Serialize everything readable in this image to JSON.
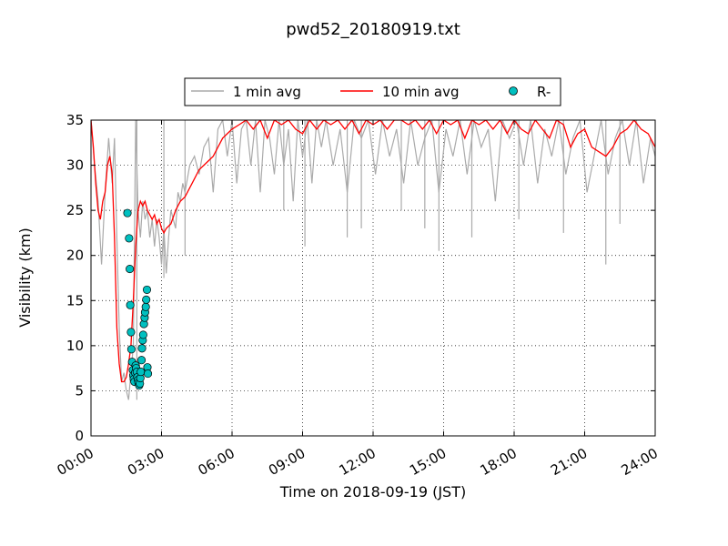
{
  "chart_data": {
    "type": "line",
    "title": "pwd52_20180919.txt",
    "xlabel": "Time on 2018-09-19 (JST)",
    "ylabel": "Visibility (km)",
    "xlim": [
      0,
      24
    ],
    "ylim": [
      0,
      35
    ],
    "x_ticks": [
      0,
      3,
      6,
      9,
      12,
      15,
      18,
      21,
      24
    ],
    "x_tick_labels": [
      "00:00",
      "03:00",
      "06:00",
      "09:00",
      "12:00",
      "15:00",
      "18:00",
      "21:00",
      "24:00"
    ],
    "y_ticks": [
      0,
      5,
      10,
      15,
      20,
      25,
      30,
      35
    ],
    "y_tick_labels": [
      "0",
      "5",
      "10",
      "15",
      "20",
      "25",
      "30",
      "35"
    ],
    "grid": true,
    "legend_position": "top-center",
    "series": [
      {
        "name": "1 min avg",
        "kind": "line",
        "color": "#aaaaaa",
        "x": [
          0.0,
          0.15,
          0.3,
          0.45,
          0.6,
          0.75,
          0.9,
          1.0,
          1.1,
          1.2,
          1.3,
          1.4,
          1.5,
          1.6,
          1.7,
          1.8,
          1.9,
          2.0,
          2.1,
          2.2,
          2.3,
          2.4,
          2.5,
          2.6,
          2.7,
          2.8,
          2.9,
          3.0,
          3.1,
          3.2,
          3.3,
          3.4,
          3.5,
          3.6,
          3.7,
          3.8,
          3.9,
          4.0,
          4.2,
          4.4,
          4.6,
          4.8,
          5.0,
          5.2,
          5.4,
          5.6,
          5.8,
          6.0,
          6.2,
          6.4,
          6.6,
          6.8,
          7.0,
          7.2,
          7.4,
          7.6,
          7.8,
          8.0,
          8.2,
          8.4,
          8.6,
          8.8,
          9.0,
          9.2,
          9.4,
          9.6,
          9.8,
          10.0,
          10.3,
          10.6,
          10.9,
          11.2,
          11.5,
          11.8,
          12.1,
          12.4,
          12.7,
          13.0,
          13.3,
          13.6,
          13.9,
          14.2,
          14.5,
          14.8,
          15.1,
          15.4,
          15.7,
          16.0,
          16.3,
          16.6,
          16.9,
          17.2,
          17.5,
          17.8,
          18.1,
          18.4,
          18.7,
          19.0,
          19.3,
          19.6,
          19.9,
          20.2,
          20.5,
          20.8,
          21.1,
          21.4,
          21.7,
          22.0,
          22.3,
          22.6,
          22.9,
          23.2,
          23.5,
          23.8,
          24.0
        ],
        "y": [
          35,
          30,
          26,
          19,
          27,
          33,
          28,
          33,
          22,
          12,
          6,
          7,
          5,
          4,
          7,
          10,
          35,
          25,
          22,
          26,
          24,
          25,
          22,
          24,
          21,
          24,
          22,
          19,
          23,
          18,
          22,
          25,
          24,
          23,
          27,
          26,
          28,
          27,
          30,
          31,
          29,
          32,
          33,
          27,
          34,
          35,
          31,
          35,
          28,
          34,
          35,
          30,
          35,
          27,
          35,
          33,
          29,
          35,
          30,
          34,
          26,
          35,
          31,
          35,
          28,
          35,
          32,
          35,
          30,
          34,
          27,
          35,
          33,
          35,
          29,
          35,
          31,
          34,
          28,
          35,
          30,
          33,
          35,
          27,
          34,
          31,
          35,
          29,
          35,
          32,
          34,
          26,
          35,
          33,
          35,
          30,
          35,
          28,
          34,
          31,
          35,
          29,
          33,
          35,
          27,
          31,
          35,
          29,
          33,
          35,
          30,
          35,
          28,
          33,
          31
        ],
        "spikes": [
          {
            "x": 1.95,
            "y": 4
          },
          {
            "x": 3.1,
            "y": 17.5
          },
          {
            "x": 4.0,
            "y": 20
          },
          {
            "x": 8.2,
            "y": 25
          },
          {
            "x": 9.1,
            "y": 21
          },
          {
            "x": 10.9,
            "y": 22
          },
          {
            "x": 11.5,
            "y": 23
          },
          {
            "x": 13.2,
            "y": 25
          },
          {
            "x": 14.2,
            "y": 23
          },
          {
            "x": 14.8,
            "y": 20.5
          },
          {
            "x": 16.2,
            "y": 22
          },
          {
            "x": 18.2,
            "y": 24
          },
          {
            "x": 20.1,
            "y": 22.5
          },
          {
            "x": 21.9,
            "y": 19
          },
          {
            "x": 22.5,
            "y": 23.5
          }
        ]
      },
      {
        "name": "10 min avg",
        "kind": "line",
        "color": "#ff0000",
        "x": [
          0.0,
          0.1,
          0.2,
          0.3,
          0.4,
          0.5,
          0.6,
          0.7,
          0.8,
          0.9,
          1.0,
          1.1,
          1.2,
          1.3,
          1.4,
          1.5,
          1.6,
          1.7,
          1.8,
          1.9,
          2.0,
          2.1,
          2.2,
          2.3,
          2.4,
          2.5,
          2.6,
          2.7,
          2.8,
          2.9,
          3.0,
          3.1,
          3.2,
          3.4,
          3.6,
          3.8,
          4.0,
          4.2,
          4.4,
          4.6,
          4.8,
          5.0,
          5.2,
          5.4,
          5.6,
          5.8,
          6.0,
          6.3,
          6.6,
          6.9,
          7.2,
          7.5,
          7.8,
          8.1,
          8.4,
          8.7,
          9.0,
          9.3,
          9.6,
          9.9,
          10.2,
          10.5,
          10.8,
          11.1,
          11.4,
          11.7,
          12.0,
          12.3,
          12.6,
          12.9,
          13.2,
          13.5,
          13.8,
          14.1,
          14.4,
          14.7,
          15.0,
          15.3,
          15.6,
          15.9,
          16.2,
          16.5,
          16.8,
          17.1,
          17.4,
          17.7,
          18.0,
          18.3,
          18.6,
          18.9,
          19.2,
          19.5,
          19.8,
          20.1,
          20.4,
          20.7,
          21.0,
          21.3,
          21.6,
          21.9,
          22.2,
          22.5,
          22.8,
          23.1,
          23.4,
          23.7,
          24.0
        ],
        "y": [
          35,
          32,
          28,
          25,
          24,
          26,
          27,
          30,
          31,
          29,
          22,
          12,
          8,
          6,
          6,
          6.5,
          8,
          10,
          15,
          21,
          25,
          26,
          25.5,
          26,
          25,
          24.5,
          24,
          24.5,
          23.5,
          24,
          23,
          22.5,
          23,
          23.5,
          25,
          26,
          26.5,
          27.5,
          28.5,
          29.5,
          30,
          30.5,
          31,
          32,
          33,
          33.5,
          34,
          34.5,
          35,
          34,
          35,
          33,
          35,
          34.5,
          35,
          34,
          33.5,
          35,
          34,
          35,
          34.5,
          35,
          34,
          35,
          33.5,
          35,
          34.5,
          35,
          34,
          35,
          35,
          34.5,
          35,
          34,
          35,
          33.5,
          35,
          34.5,
          35,
          33,
          35,
          34.5,
          35,
          34,
          35,
          33.5,
          35,
          34,
          33.5,
          35,
          34,
          33,
          35,
          34.5,
          32,
          33.5,
          34,
          32,
          31.5,
          31,
          32,
          33.5,
          34,
          35,
          34,
          33.5,
          32
        ]
      },
      {
        "name": "R-",
        "kind": "scatter",
        "color": "#00c0c0",
        "x": [
          1.55,
          1.62,
          1.65,
          1.67,
          1.7,
          1.72,
          1.75,
          1.78,
          1.8,
          1.82,
          1.85,
          1.88,
          1.9,
          1.92,
          1.95,
          1.97,
          2.0,
          2.02,
          2.05,
          2.08,
          2.1,
          2.12,
          2.15,
          2.17,
          2.2,
          2.22,
          2.25,
          2.28,
          2.3,
          2.33,
          2.35,
          2.38,
          2.4,
          2.42
        ],
        "y": [
          24.7,
          21.9,
          18.5,
          14.5,
          11.5,
          9.6,
          8.2,
          7.3,
          6.7,
          6.3,
          6.0,
          7.0,
          7.8,
          7.5,
          7.1,
          6.5,
          6.2,
          5.9,
          5.6,
          5.8,
          6.4,
          7.1,
          8.4,
          9.7,
          10.6,
          11.2,
          12.4,
          13.1,
          13.7,
          14.3,
          15.1,
          16.2,
          7.6,
          6.9
        ]
      }
    ]
  }
}
